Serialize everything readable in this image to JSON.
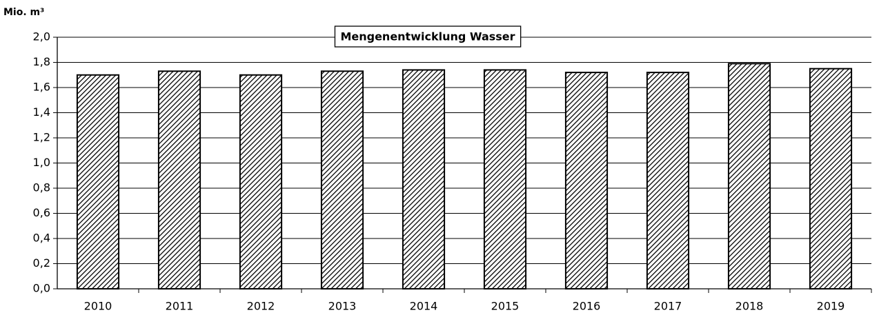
{
  "chart_data": {
    "type": "bar",
    "title": "Mengenentwicklung Wasser",
    "y_label": "Mio. m³",
    "categories": [
      "2010",
      "2011",
      "2012",
      "2013",
      "2014",
      "2015",
      "2016",
      "2017",
      "2018",
      "2019"
    ],
    "values": [
      1.7,
      1.73,
      1.7,
      1.73,
      1.74,
      1.74,
      1.72,
      1.72,
      1.79,
      1.75
    ],
    "color": "#000000",
    "ylim": [
      0,
      2
    ],
    "yticks": [
      {
        "value": 0,
        "label": "0,0"
      },
      {
        "value": 0.2,
        "label": "0,2"
      },
      {
        "value": 0.4,
        "label": "0,4"
      },
      {
        "value": 0.6,
        "label": "0,6"
      },
      {
        "value": 0.8,
        "label": "0,8"
      },
      {
        "value": 1,
        "label": "1,0"
      },
      {
        "value": 1.2,
        "label": "1,2"
      },
      {
        "value": 1.4,
        "label": "1,4"
      },
      {
        "value": 1.6,
        "label": "1,6"
      },
      {
        "value": 1.8,
        "label": "1,8"
      },
      {
        "value": 2,
        "label": "2,0"
      }
    ],
    "grid": true
  }
}
